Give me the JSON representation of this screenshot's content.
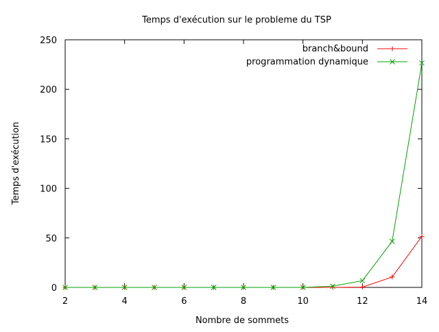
{
  "chart_data": {
    "type": "line",
    "title": "Temps d'exécution sur le probleme du TSP",
    "xlabel": "Nombre de sommets",
    "ylabel": "Temps d'exécution",
    "xlim": [
      2,
      14
    ],
    "ylim": [
      0,
      250
    ],
    "x_ticks": [
      2,
      4,
      6,
      8,
      10,
      12,
      14
    ],
    "y_ticks": [
      0,
      50,
      100,
      150,
      200,
      250
    ],
    "x_tick_labels": [
      "2",
      "4",
      "6",
      "8",
      "10",
      "12",
      "14"
    ],
    "y_tick_labels": [
      "0",
      "50",
      "100",
      "150",
      "200",
      "250"
    ],
    "x": [
      2,
      3,
      4,
      5,
      6,
      7,
      8,
      9,
      10,
      11,
      12,
      13,
      14
    ],
    "grid": false,
    "legend_position": "top-right",
    "series": [
      {
        "name": "branch&bound",
        "color": "#ff0000",
        "marker": "plus",
        "values": [
          0,
          0,
          0,
          0,
          0,
          0,
          0,
          0,
          0,
          0,
          0.3,
          10.5,
          51.5
        ]
      },
      {
        "name": "programmation dynamique",
        "color": "#00a000",
        "marker": "cross",
        "values": [
          0,
          0,
          0,
          0,
          0,
          0,
          0,
          0,
          0,
          1.2,
          6.8,
          46.5,
          226.5
        ]
      }
    ]
  }
}
